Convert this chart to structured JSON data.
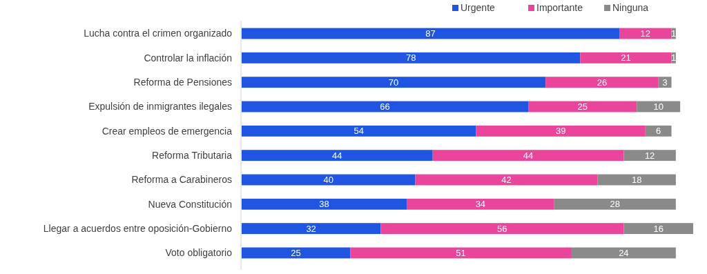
{
  "chart_data": {
    "type": "bar",
    "orientation": "horizontal",
    "stacked": true,
    "categories": [
      "Lucha contra el crimen organizado",
      "Controlar la inflación",
      "Reforma de Pensiones",
      "Expulsión de inmigrantes ilegales",
      "Crear empleos de emergencia",
      "Reforma Tributaria",
      "Reforma a Carabineros",
      "Nueva Constitución",
      "Llegar a acuerdos entre oposición-Gobierno",
      "Voto obligatorio"
    ],
    "series": [
      {
        "name": "Urgente",
        "color": "#1f55e0",
        "values": [
          87,
          78,
          70,
          66,
          54,
          44,
          40,
          38,
          32,
          25
        ]
      },
      {
        "name": "Importante",
        "color": "#e8459b",
        "values": [
          12,
          21,
          26,
          25,
          39,
          44,
          42,
          34,
          56,
          51
        ]
      },
      {
        "name": "Ninguna",
        "color": "#8a8a8a",
        "values": [
          1,
          1,
          3,
          10,
          6,
          12,
          18,
          28,
          16,
          24
        ]
      }
    ],
    "xlim": [
      0,
      104
    ],
    "data_labels": true,
    "legend": "top right",
    "tick_labels": "y"
  }
}
